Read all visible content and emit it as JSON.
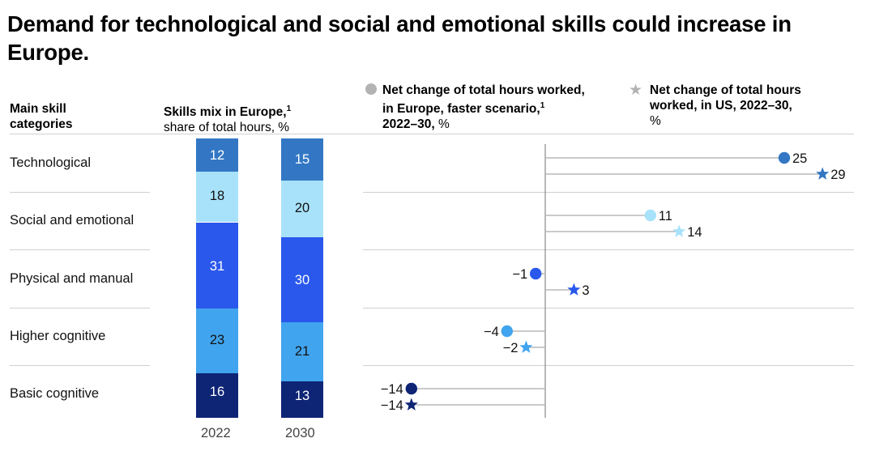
{
  "title": "Demand for technological and social and emotional skills could increase in Europe.",
  "headers": {
    "col1_line1": "Main skill",
    "col1_line2": "categories",
    "col2_bold": "Skills mix in Europe,",
    "col2_sup": "1",
    "col2_sub": "share of total hours, %",
    "legend_europe_line1": "Net change of total hours worked,",
    "legend_europe_line2": "in Europe, faster scenario,",
    "legend_europe_sup": "1",
    "legend_europe_line3_bold": "2022–30,",
    "legend_europe_line3": " %",
    "legend_us_line1": "Net change of total hours",
    "legend_us_line2": "worked, in US, 2022–30,",
    "legend_us_line3": "%"
  },
  "colors": {
    "technological": "#3377c4",
    "social": "#a8e2fa",
    "physical": "#2a58ec",
    "higher": "#41a4ee",
    "basic": "#0e2475",
    "legend_gray": "#b3b3b3",
    "axis": "#888888",
    "grid": "#d0d0d0"
  },
  "chart_data": [
    {
      "type": "bar",
      "title": "Skills mix in Europe, share of total hours, %",
      "stacked": true,
      "categories": [
        "2022",
        "2030"
      ],
      "series": [
        {
          "name": "Basic cognitive",
          "values": [
            16,
            13
          ],
          "label_color": "#ffffff"
        },
        {
          "name": "Higher cognitive",
          "values": [
            23,
            21
          ],
          "label_color": "#111111"
        },
        {
          "name": "Physical and manual",
          "values": [
            31,
            30
          ],
          "label_color": "#ffffff"
        },
        {
          "name": "Social and emotional",
          "values": [
            18,
            20
          ],
          "label_color": "#111111"
        },
        {
          "name": "Technological",
          "values": [
            12,
            15
          ],
          "label_color": "#ffffff"
        }
      ]
    },
    {
      "type": "scatter",
      "title": "Net change of total hours worked, 2022–30, %",
      "xlim": [
        -16,
        31
      ],
      "categories": [
        "Technological",
        "Social and emotional",
        "Physical and manual",
        "Higher cognitive",
        "Basic cognitive"
      ],
      "series": [
        {
          "name": "Europe, faster scenario",
          "marker": "circle",
          "values": [
            25,
            11,
            -1,
            -4,
            -14
          ],
          "labels": [
            "25",
            "11",
            "−1",
            "−4",
            "−14"
          ]
        },
        {
          "name": "US",
          "marker": "star",
          "values": [
            29,
            14,
            3,
            -2,
            -14
          ],
          "labels": [
            "29",
            "14",
            "3",
            "−2",
            "−14"
          ]
        }
      ]
    }
  ]
}
